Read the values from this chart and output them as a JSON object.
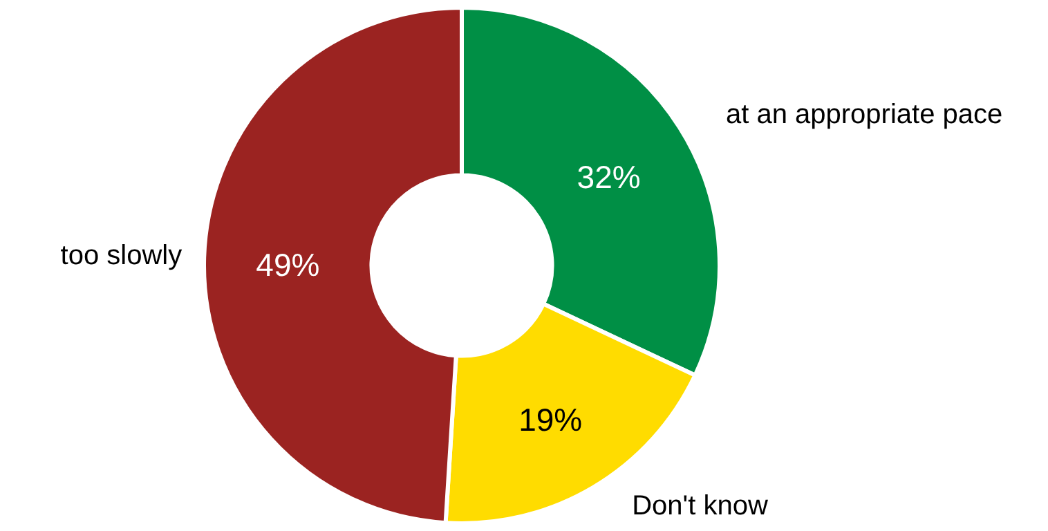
{
  "chart_data": {
    "type": "donut",
    "categories": [
      "at an appropriate pace",
      "Don't know",
      "too slowly"
    ],
    "values": [
      32,
      19,
      49
    ],
    "colors": [
      "#008f45",
      "#ffdc00",
      "#9b2321"
    ],
    "value_labels": [
      "32%",
      "19%",
      "49%"
    ],
    "legend": false
  }
}
